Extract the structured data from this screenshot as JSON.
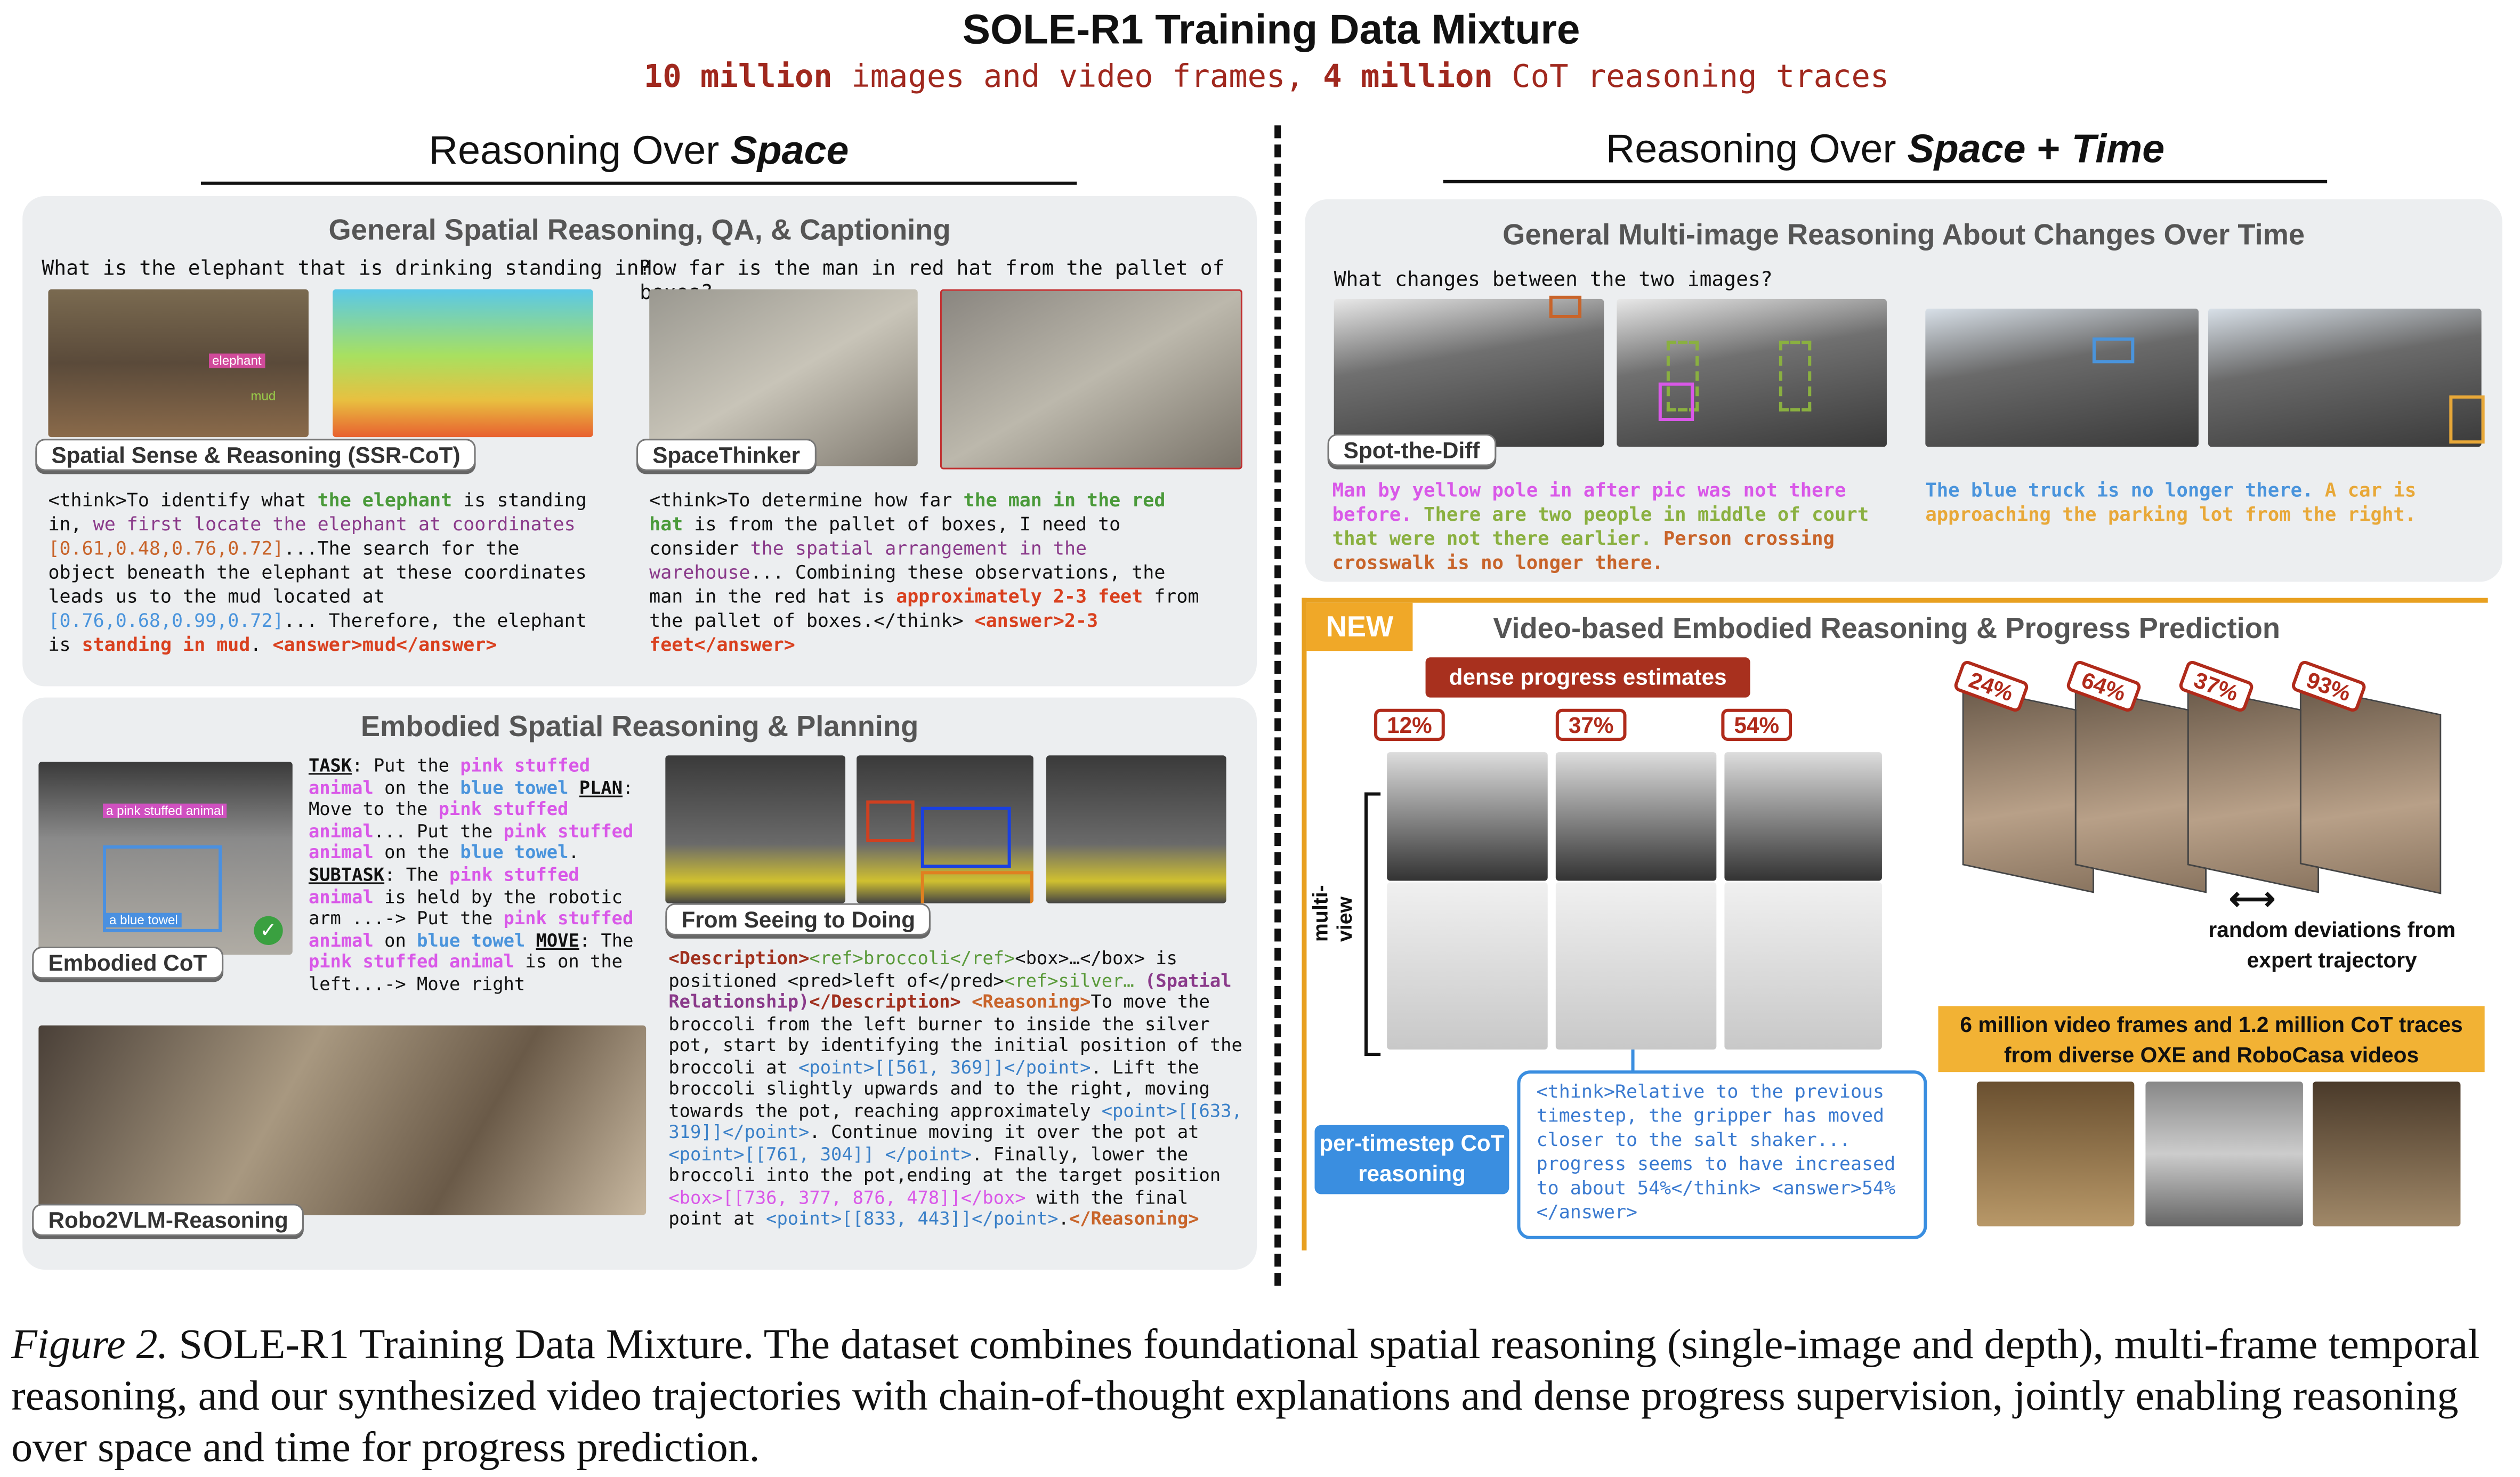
{
  "title": "SOLE-R1 Training Data Mixture",
  "subtitle": [
    {
      "t": "10 million",
      "b": 1
    },
    {
      "t": " images and video frames, "
    },
    {
      "t": "4 million",
      "b": 1
    },
    {
      "t": " CoT reasoning traces"
    }
  ],
  "left_heading": {
    "prefix": "Reasoning Over ",
    "emph": "Space"
  },
  "right_heading": {
    "prefix": "Reasoning Over ",
    "emph1": "Space",
    "plus": " + ",
    "emph2": "Time"
  },
  "colors": {
    "green": "#4a9a3a",
    "purple": "#8a3a8a",
    "orange": "#c8642a",
    "blue": "#4a94dc",
    "red": "#d9401e",
    "pink": "#d958e8",
    "darkred": "#a0301e",
    "olive": "#8ab040",
    "amber": "#e8a838",
    "accent": "#e8a020"
  },
  "panel_spatial": {
    "title": "General Spatial Reasoning, QA, & Captioning",
    "q1": "What is the elephant that is drinking standing in?",
    "q2": "How far is the man in red hat from the pallet of boxes?",
    "img_labels": {
      "elephant": "elephant",
      "mud": "mud"
    },
    "tag1": "Spatial Sense & Reasoning (SSR-CoT)",
    "tag2": "SpaceThinker",
    "text1": [
      {
        "t": "<think>To identify what "
      },
      {
        "t": "the elephant",
        "c": "#4a9a3a",
        "b": 1
      },
      {
        "t": " is standing in, "
      },
      {
        "t": "we first locate the elephant at coordinates ",
        "c": "#8a3a8a"
      },
      {
        "t": "[0.61,0.48,0.76,0.72]",
        "c": "#c8642a"
      },
      {
        "t": "...The search for the object beneath the elephant at these coordinates leads us to the mud located at "
      },
      {
        "t": "[0.76,0.68,0.99,0.72]",
        "c": "#4a94dc"
      },
      {
        "t": "... Therefore, the elephant is "
      },
      {
        "t": "standing in mud",
        "c": "#d9401e",
        "b": 1
      },
      {
        "t": ". "
      },
      {
        "t": "<answer>mud</answer>",
        "c": "#d9401e",
        "b": 1
      }
    ],
    "text2": [
      {
        "t": "<think>To determine how far "
      },
      {
        "t": "the man in the red hat",
        "c": "#4a9a3a",
        "b": 1
      },
      {
        "t": " is from the pallet of boxes, I need to consider "
      },
      {
        "t": "the spatial arrangement in the warehouse",
        "c": "#8a3a8a"
      },
      {
        "t": "... Combining these observations, the man in the red hat is "
      },
      {
        "t": "approximately 2-3 feet",
        "c": "#d9401e",
        "b": 1
      },
      {
        "t": " from the pallet of boxes.</think> "
      },
      {
        "t": "<answer>2-3 feet</answer>",
        "c": "#d9401e",
        "b": 1
      }
    ]
  },
  "panel_embodied": {
    "title": "Embodied Spatial Reasoning & Planning",
    "img_labels": {
      "animal": "a pink stuffed animal",
      "towel": "a blue towel"
    },
    "tag1": "Embodied CoT",
    "tag2": "From Seeing to Doing",
    "tag3": "Robo2VLM-Reasoning",
    "text1": [
      {
        "t": "TASK",
        "b": 1,
        "u": 1
      },
      {
        "t": ": Put the "
      },
      {
        "t": "pink stuffed animal",
        "c": "#d958e8",
        "b": 1
      },
      {
        "t": " on the "
      },
      {
        "t": "blue towel",
        "c": "#4a94dc",
        "b": 1
      },
      {
        "t": " "
      },
      {
        "t": "PLAN",
        "b": 1,
        "u": 1
      },
      {
        "t": ": Move to the "
      },
      {
        "t": "pink stuffed animal",
        "c": "#d958e8",
        "b": 1
      },
      {
        "t": "... Put the "
      },
      {
        "t": "pink stuffed animal",
        "c": "#d958e8",
        "b": 1
      },
      {
        "t": " on the "
      },
      {
        "t": "blue towel",
        "c": "#4a94dc",
        "b": 1
      },
      {
        "t": ". "
      },
      {
        "t": "SUBTASK",
        "b": 1,
        "u": 1
      },
      {
        "t": ": The "
      },
      {
        "t": "pink stuffed animal",
        "c": "#d958e8",
        "b": 1
      },
      {
        "t": " is held by the robotic arm ...-> Put the "
      },
      {
        "t": "pink stuffed animal",
        "c": "#d958e8",
        "b": 1
      },
      {
        "t": " on "
      },
      {
        "t": "blue towel",
        "c": "#4a94dc",
        "b": 1
      },
      {
        "t": " "
      },
      {
        "t": "MOVE",
        "b": 1,
        "u": 1
      },
      {
        "t": ": The "
      },
      {
        "t": "pink stuffed animal",
        "c": "#d958e8",
        "b": 1
      },
      {
        "t": " is on the left...-> Move right"
      }
    ],
    "text2": [
      {
        "t": "<Description>",
        "c": "#a0301e",
        "b": 1
      },
      {
        "t": "<ref>broccoli</ref>",
        "c": "#5a9a3a"
      },
      {
        "t": "<box>…</box> is positioned <pred>left of</pred>"
      },
      {
        "t": "<ref>silver…",
        "c": "#5a9a3a"
      },
      {
        "t": " (Spatial Relationship)",
        "c": "#8a3a8a",
        "b": 1
      },
      {
        "t": "</Description>",
        "c": "#a0301e",
        "b": 1
      },
      {
        "t": " "
      },
      {
        "t": "<Reasoning>",
        "c": "#c8642a",
        "b": 1
      },
      {
        "t": "To move the broccoli from the left burner to inside the silver pot, start by identifying the initial position of the broccoli at "
      },
      {
        "t": "<point>[[561, 369]]</point>",
        "c": "#3a80c8"
      },
      {
        "t": ". Lift the broccoli slightly upwards and to the right, moving towards the pot, reaching approximately "
      },
      {
        "t": "<point>[[633, 319]]</point>",
        "c": "#3a80c8"
      },
      {
        "t": ". Continue moving it over the pot at "
      },
      {
        "t": "<point>[[761, 304]] </point>",
        "c": "#3a80c8"
      },
      {
        "t": ". Finally, lower the broccoli into the pot,ending at the target position "
      },
      {
        "t": "<box>[[736, 377, 876, 478]]</box>",
        "c": "#d958e8"
      },
      {
        "t": " with the final point at "
      },
      {
        "t": "<point>[[833, 443]]</point>",
        "c": "#3a80c8"
      },
      {
        "t": "."
      },
      {
        "t": "</Reasoning>",
        "c": "#c8642a",
        "b": 1
      }
    ]
  },
  "panel_multi": {
    "title": "General Multi-image Reasoning  About Changes Over Time",
    "q": "What changes between the two images?",
    "tag": "Spot-the-Diff",
    "text1": [
      {
        "t": "Man by yellow pole in after pic was not there before. ",
        "c": "#d958e8"
      },
      {
        "t": "There are two people in middle of court that were not there earlier. ",
        "c": "#8ab040"
      },
      {
        "t": "Person crossing crosswalk is no longer there.",
        "c": "#c8642a"
      }
    ],
    "text2": [
      {
        "t": "The blue truck is no longer there. ",
        "c": "#4a94dc"
      },
      {
        "t": "A car is approaching the parking lot from the right.",
        "c": "#e8a838"
      }
    ]
  },
  "panel_video": {
    "badge": "NEW",
    "title": "Video-based Embodied Reasoning & Progress Prediction",
    "dense_label": "dense progress estimates",
    "progress": [
      "12%",
      "37%",
      "54%"
    ],
    "multiview_label": "multi-view",
    "deviation_progress": [
      "24%",
      "64%",
      "37%",
      "93%"
    ],
    "deviation_label": "random deviations from expert trajectory",
    "stats_label": "6 million video frames and  1.2 million CoT traces from diverse OXE and RoboCasa videos",
    "cot_label": "per-timestep CoT reasoning",
    "think_text": "<think>Relative to the previous timestep, the gripper has moved closer to the salt shaker... progress seems to have increased to about 54%</think> <answer>54%</answer>"
  },
  "caption": {
    "label": "Figure 2.",
    "text": " SOLE-R1 Training Data Mixture. The dataset combines foundational spatial reasoning (single-image and depth), multi-frame temporal reasoning, and our synthesized video trajectories with chain-of-thought explanations and dense progress supervision, jointly enabling reasoning over space and time for progress prediction."
  }
}
